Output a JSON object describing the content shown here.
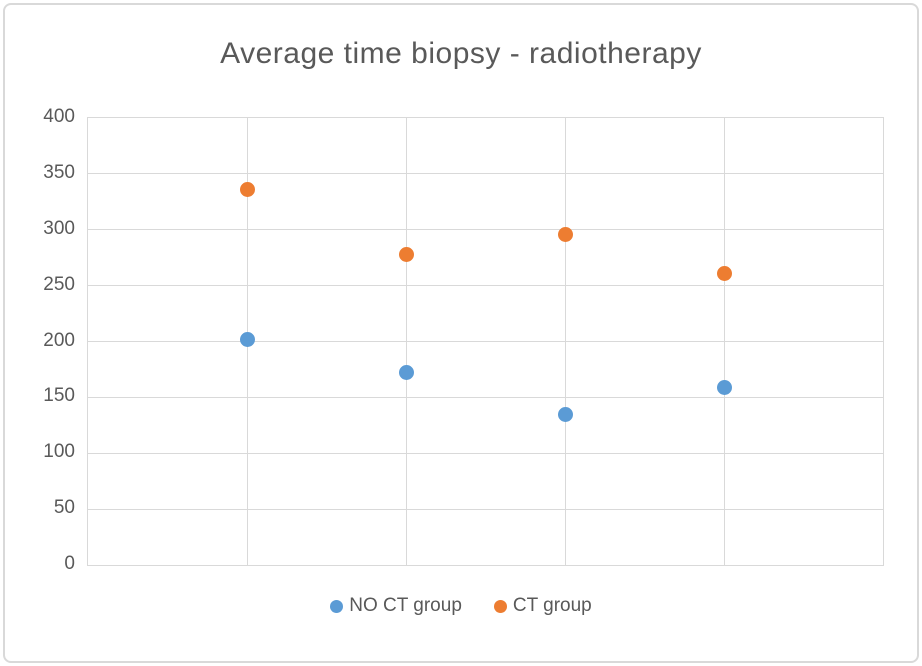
{
  "window": {
    "background_color": "#ffffff",
    "border_color": "#d9d9d9"
  },
  "chart_data": {
    "type": "scatter",
    "title": "Average time biopsy - radiotherapy",
    "x": [
      1,
      2,
      3,
      4
    ],
    "series": [
      {
        "name": "NO CT group",
        "color": "#5b9bd5",
        "values": [
          202,
          172,
          135,
          159
        ]
      },
      {
        "name": "CT group",
        "color": "#ed7d31",
        "values": [
          336,
          278,
          296,
          261
        ]
      }
    ],
    "xlim": [
      0,
      5
    ],
    "ylim": [
      0,
      400
    ],
    "y_ticks": [
      0,
      50,
      100,
      150,
      200,
      250,
      300,
      350,
      400
    ],
    "x_gridlines": [
      1,
      2,
      3,
      4
    ],
    "grid": "both",
    "gridline_color": "#d9d9d9",
    "text_color": "#595959",
    "legend_position": "bottom",
    "xlabel": "",
    "ylabel": ""
  }
}
